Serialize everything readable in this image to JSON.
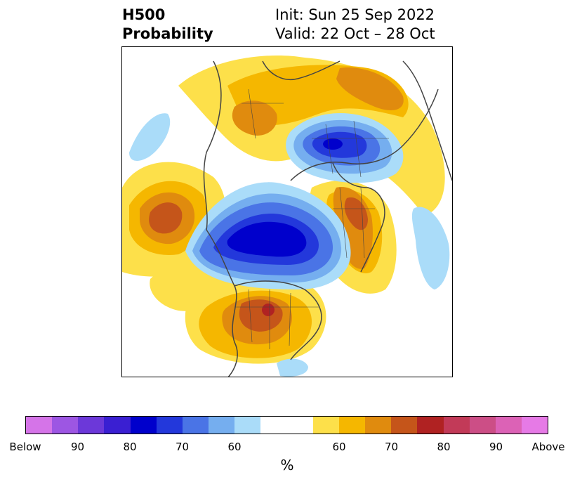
{
  "header": {
    "variable": "H500",
    "product": "Probability",
    "init": "Init: Sun 25 Sep 2022",
    "valid": "Valid: 22 Oct – 28 Oct"
  },
  "colorbar": {
    "unit": "%",
    "colors": [
      "#d574e8",
      "#9d56e3",
      "#6c38d9",
      "#3a1fd2",
      "#0000cc",
      "#2338db",
      "#4a74e6",
      "#75aeef",
      "#aadcf9",
      "#ffffff",
      "#ffffff",
      "#fde04a",
      "#f5b700",
      "#e08b0e",
      "#c5551a",
      "#b02222",
      "#c23a58",
      "#cc4e86",
      "#dc62b6",
      "#e67ae6"
    ],
    "tick_labels": [
      "Below",
      "90",
      "80",
      "70",
      "60",
      "60",
      "70",
      "80",
      "90",
      "Above"
    ]
  },
  "map": {
    "projection": "north-polar-stereographic",
    "below_color": "#0000cc",
    "above_color": "#c5551a"
  }
}
